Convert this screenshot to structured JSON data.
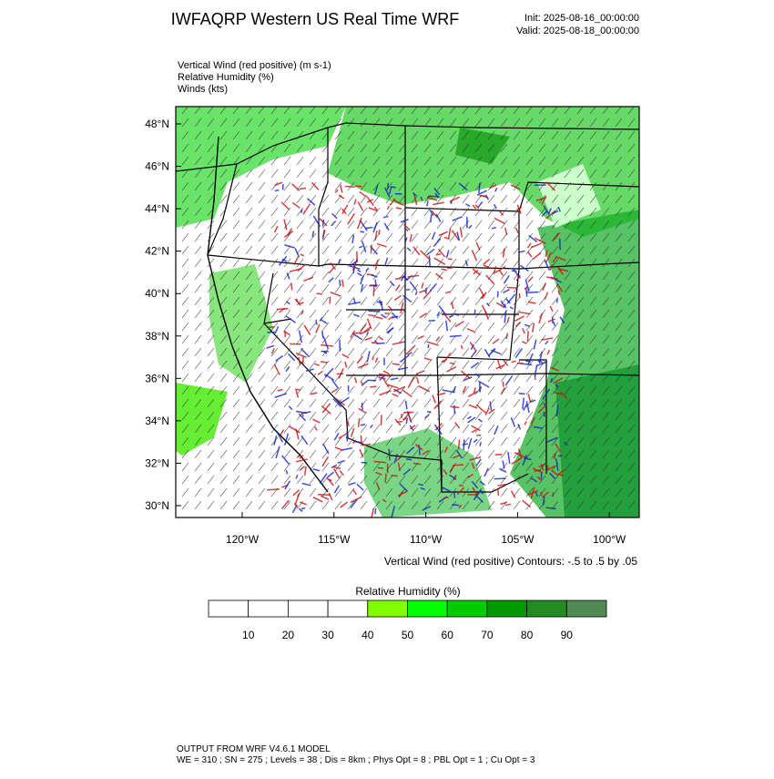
{
  "header": {
    "title": "IWFAQRP Western US Real Time WRF",
    "init": "Init: 2025-08-16_00:00:00",
    "valid": "Valid: 2025-08-18_00:00:00"
  },
  "fields": [
    "Vertical Wind (red positive)   (m s-1)",
    "Relative Humidity   (%)",
    "Winds   (kts)"
  ],
  "map": {
    "lat_labels": [
      "48°N",
      "46°N",
      "44°N",
      "42°N",
      "40°N",
      "38°N",
      "36°N",
      "34°N",
      "32°N",
      "30°N"
    ],
    "lon_labels": [
      "120°W",
      "115°W",
      "110°W",
      "105°W",
      "100°W"
    ],
    "contour_note": "Vertical Wind (red positive) Contours: -.5 to .5 by .05"
  },
  "colorbar": {
    "title": "Relative Humidity  (%)",
    "labels": [
      10,
      20,
      30,
      40,
      50,
      60,
      70,
      80,
      90
    ],
    "colors": [
      "#ffffff",
      "#ffffff",
      "#ffffff",
      "#ffffff",
      "#80ff00",
      "#00ff00",
      "#00cc00",
      "#009900",
      "#228b22",
      "#4f8a54"
    ]
  },
  "footer": {
    "line1": "OUTPUT FROM WRF V4.6.1 MODEL",
    "line2": "WE = 310 ; SN = 275 ; Levels = 38 ; Dis = 8km ; Phys Opt = 8 ; PBL Opt = 1 ; Cu Opt = 3"
  }
}
